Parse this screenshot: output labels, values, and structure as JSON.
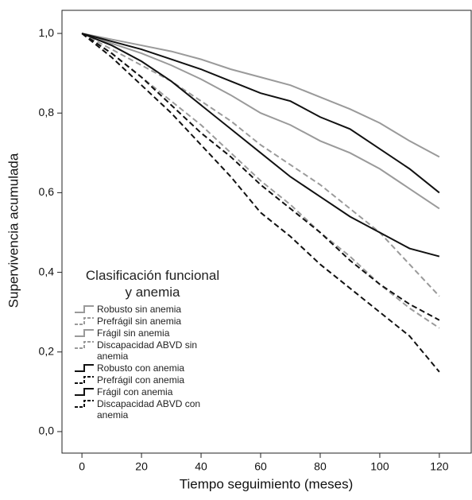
{
  "chart_data": {
    "type": "line",
    "xlabel": "Tiempo seguimiento (meses)",
    "ylabel": "Supervivencia acumulada",
    "x": [
      0,
      10,
      20,
      30,
      40,
      50,
      60,
      70,
      80,
      90,
      100,
      110,
      120
    ],
    "xlim": [
      -6.7,
      130.7
    ],
    "xticks": [
      0,
      20,
      40,
      60,
      80,
      100,
      120
    ],
    "ylim": [
      -0.054,
      1.058
    ],
    "yticks": [
      {
        "value": 0,
        "label": "0,0"
      },
      {
        "value": 0.2,
        "label": "0,2"
      },
      {
        "value": 0.4,
        "label": "0,4"
      },
      {
        "value": 0.6,
        "label": "0,6"
      },
      {
        "value": 0.8,
        "label": "0,8"
      },
      {
        "value": 1,
        "label": "1,0"
      }
    ],
    "legend_title": [
      "Clasificación funcional",
      "y anemia"
    ],
    "series": [
      {
        "name": "Robusto sin anemia",
        "color": "#9a9a9a",
        "style": "solid",
        "values": [
          1,
          0.985,
          0.97,
          0.955,
          0.935,
          0.91,
          0.89,
          0.87,
          0.84,
          0.81,
          0.775,
          0.73,
          0.69
        ]
      },
      {
        "name": "Prefrágil sin anemia",
        "color": "#9a9a9a",
        "style": "dashed",
        "values": [
          1,
          0.96,
          0.92,
          0.88,
          0.83,
          0.78,
          0.72,
          0.67,
          0.62,
          0.56,
          0.5,
          0.42,
          0.34
        ]
      },
      {
        "name": "Frágil sin anemia",
        "color": "#9a9a9a",
        "style": "solid",
        "values": [
          1,
          0.975,
          0.95,
          0.92,
          0.885,
          0.845,
          0.8,
          0.77,
          0.73,
          0.7,
          0.66,
          0.61,
          0.56
        ]
      },
      {
        "name": "Discapacidad ABVD sin anemia",
        "color": "#9a9a9a",
        "style": "dashed",
        "values": [
          1,
          0.95,
          0.89,
          0.83,
          0.77,
          0.7,
          0.63,
          0.57,
          0.5,
          0.44,
          0.37,
          0.31,
          0.26
        ]
      },
      {
        "name": "Robusto con anemia",
        "color": "#111111",
        "style": "solid",
        "values": [
          1,
          0.98,
          0.96,
          0.935,
          0.91,
          0.88,
          0.85,
          0.83,
          0.79,
          0.76,
          0.71,
          0.66,
          0.6
        ]
      },
      {
        "name": "Prefrágil con anemia",
        "color": "#111111",
        "style": "dashed",
        "values": [
          1,
          0.95,
          0.89,
          0.82,
          0.75,
          0.69,
          0.62,
          0.56,
          0.5,
          0.43,
          0.37,
          0.32,
          0.28
        ]
      },
      {
        "name": "Frágil con anemia",
        "color": "#111111",
        "style": "solid",
        "values": [
          1,
          0.97,
          0.93,
          0.88,
          0.82,
          0.76,
          0.7,
          0.64,
          0.59,
          0.54,
          0.5,
          0.46,
          0.44
        ]
      },
      {
        "name": "Discapacidad ABVD con anemia",
        "color": "#111111",
        "style": "dashed",
        "values": [
          1,
          0.94,
          0.87,
          0.8,
          0.72,
          0.64,
          0.55,
          0.49,
          0.42,
          0.36,
          0.3,
          0.24,
          0.15
        ]
      }
    ]
  }
}
